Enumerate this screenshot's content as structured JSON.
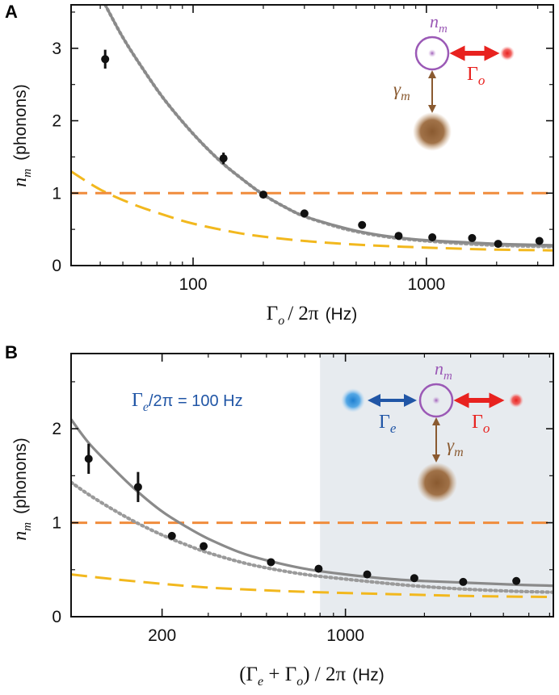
{
  "chart_data": [
    {
      "panel": "A",
      "type": "scatter",
      "x_scale": "log",
      "xlim": [
        30,
        3500
      ],
      "ylim": [
        0,
        3.6
      ],
      "x_ticks": [
        100,
        1000
      ],
      "x_tick_labels": [
        "100",
        "1000"
      ],
      "y_ticks": [
        0,
        1,
        2,
        3
      ],
      "y_tick_labels": [
        "0",
        "1",
        "2",
        "3"
      ],
      "ylabel_symbol": "n",
      "ylabel_sub": "m",
      "ylabel_unit": "(phonons)",
      "xlabel_symbol": "Γ",
      "xlabel_sub": "o",
      "xlabel_rest": "/ 2π",
      "xlabel_unit": "(Hz)",
      "points": [
        {
          "x": 42,
          "y": 2.85,
          "err": 0.13
        },
        {
          "x": 135,
          "y": 1.48,
          "err": 0.08
        },
        {
          "x": 200,
          "y": 0.98,
          "err": 0
        },
        {
          "x": 300,
          "y": 0.72,
          "err": 0
        },
        {
          "x": 530,
          "y": 0.56,
          "err": 0
        },
        {
          "x": 760,
          "y": 0.41,
          "err": 0
        },
        {
          "x": 1060,
          "y": 0.39,
          "err": 0
        },
        {
          "x": 1570,
          "y": 0.38,
          "err": 0
        },
        {
          "x": 2030,
          "y": 0.3,
          "err": 0
        },
        {
          "x": 3050,
          "y": 0.34,
          "err": 0
        }
      ],
      "series": [
        {
          "name": "fit-solid",
          "style": "solid",
          "color": "#8a8a8a",
          "x": [
            42,
            50,
            60,
            75,
            100,
            130,
            160,
            200,
            250,
            300,
            400,
            500,
            700,
            1000,
            1500,
            2000,
            2600,
            3500
          ],
          "y": [
            3.6,
            3.15,
            2.75,
            2.3,
            1.82,
            1.45,
            1.21,
            0.98,
            0.8,
            0.68,
            0.56,
            0.48,
            0.4,
            0.35,
            0.32,
            0.3,
            0.29,
            0.28
          ]
        },
        {
          "name": "fit-dotted",
          "style": "dotted",
          "color": "#9a9a9a",
          "x": [
            42,
            50,
            60,
            75,
            100,
            130,
            160,
            200,
            250,
            300,
            400,
            500,
            700,
            1000,
            1500,
            2000,
            2600,
            3500
          ],
          "y": [
            3.6,
            3.15,
            2.75,
            2.3,
            1.82,
            1.45,
            1.21,
            0.98,
            0.8,
            0.68,
            0.55,
            0.47,
            0.39,
            0.34,
            0.3,
            0.28,
            0.27,
            0.26
          ]
        },
        {
          "name": "thermal-bath",
          "style": "dashed",
          "color": "#f08c3c",
          "x": [
            30,
            3500
          ],
          "y": [
            1.0,
            1.0
          ]
        },
        {
          "name": "optical-limit",
          "style": "dashed",
          "color": "#f2b81e",
          "x": [
            30,
            40,
            55,
            75,
            100,
            150,
            200,
            300,
            500,
            800,
            1200,
            2000,
            3500
          ],
          "y": [
            1.3,
            1.05,
            0.85,
            0.7,
            0.58,
            0.46,
            0.4,
            0.34,
            0.29,
            0.26,
            0.24,
            0.22,
            0.21
          ]
        }
      ],
      "inset": {
        "nm_label": "n",
        "nm_sub": "m",
        "gamma_m": "γ",
        "gamma_m_sub": "m",
        "Gamma_o": "Γ",
        "Gamma_o_sub": "o"
      }
    },
    {
      "panel": "B",
      "type": "scatter",
      "x_scale": "log",
      "xlim": [
        90,
        6200
      ],
      "ylim": [
        0,
        2.8
      ],
      "x_ticks": [
        200,
        1000
      ],
      "x_tick_labels": [
        "200",
        "1000"
      ],
      "y_ticks": [
        0,
        1,
        2
      ],
      "y_tick_labels": [
        "0",
        "1",
        "2"
      ],
      "shade_from_x": 800,
      "ylabel_symbol": "n",
      "ylabel_sub": "m",
      "ylabel_unit": "(phonons)",
      "xlabel_part1": "(Γ",
      "xlabel_sub1": "e",
      "xlabel_part2": " + Γ",
      "xlabel_sub2": "o",
      "xlabel_part3": ") / 2π",
      "xlabel_unit": "(Hz)",
      "annotation_symbol": "Γ",
      "annotation_sub": "e",
      "annotation_rest": "/2π = 100 Hz",
      "points": [
        {
          "x": 105,
          "y": 1.68,
          "err": 0.16
        },
        {
          "x": 162,
          "y": 1.38,
          "err": 0.16
        },
        {
          "x": 218,
          "y": 0.86,
          "err": 0
        },
        {
          "x": 288,
          "y": 0.75,
          "err": 0
        },
        {
          "x": 520,
          "y": 0.58,
          "err": 0
        },
        {
          "x": 790,
          "y": 0.51,
          "err": 0
        },
        {
          "x": 1210,
          "y": 0.45,
          "err": 0
        },
        {
          "x": 1830,
          "y": 0.41,
          "err": 0
        },
        {
          "x": 2810,
          "y": 0.37,
          "err": 0
        },
        {
          "x": 4480,
          "y": 0.38,
          "err": 0
        }
      ],
      "series": [
        {
          "name": "fit-solid",
          "style": "solid",
          "color": "#8a8a8a",
          "x": [
            90,
            105,
            130,
            160,
            200,
            250,
            300,
            400,
            500,
            700,
            1000,
            1500,
            2000,
            3000,
            4500,
            6200
          ],
          "y": [
            2.1,
            1.85,
            1.58,
            1.34,
            1.12,
            0.95,
            0.83,
            0.68,
            0.6,
            0.51,
            0.45,
            0.4,
            0.38,
            0.36,
            0.34,
            0.33
          ]
        },
        {
          "name": "fit-dotted",
          "style": "dotted",
          "color": "#9a9a9a",
          "x": [
            90,
            105,
            130,
            160,
            200,
            250,
            300,
            400,
            500,
            700,
            1000,
            1500,
            2000,
            3000,
            4500,
            6200
          ],
          "y": [
            1.43,
            1.3,
            1.14,
            1.0,
            0.87,
            0.76,
            0.68,
            0.58,
            0.52,
            0.45,
            0.4,
            0.35,
            0.32,
            0.29,
            0.27,
            0.26
          ]
        },
        {
          "name": "thermal-bath",
          "style": "dashed",
          "color": "#f08c3c",
          "x": [
            90,
            6200
          ],
          "y": [
            1.0,
            1.0
          ]
        },
        {
          "name": "optical-limit",
          "style": "dashed",
          "color": "#f2b81e",
          "x": [
            90,
            130,
            200,
            300,
            500,
            800,
            1500,
            3000,
            6200
          ],
          "y": [
            0.45,
            0.4,
            0.35,
            0.31,
            0.28,
            0.26,
            0.24,
            0.22,
            0.21
          ]
        }
      ],
      "inset": {
        "nm_label": "n",
        "nm_sub": "m",
        "gamma_m": "γ",
        "gamma_m_sub": "m",
        "Gamma_o": "Γ",
        "Gamma_o_sub": "o",
        "Gamma_e": "Γ",
        "Gamma_e_sub": "e"
      }
    }
  ],
  "panel_labels": [
    "A",
    "B"
  ],
  "colors": {
    "axis": "#111111",
    "point": "#111111",
    "fit": "#8a8a8a",
    "dotted": "#9a9a9a",
    "bath": "#f08c3c",
    "optical": "#f2b81e",
    "shade": "#e7ebef",
    "mechanical": "#9b59b6",
    "laser": "#e8221f",
    "electrical": "#2156a6",
    "phonon_bath": "#8a5a30"
  }
}
